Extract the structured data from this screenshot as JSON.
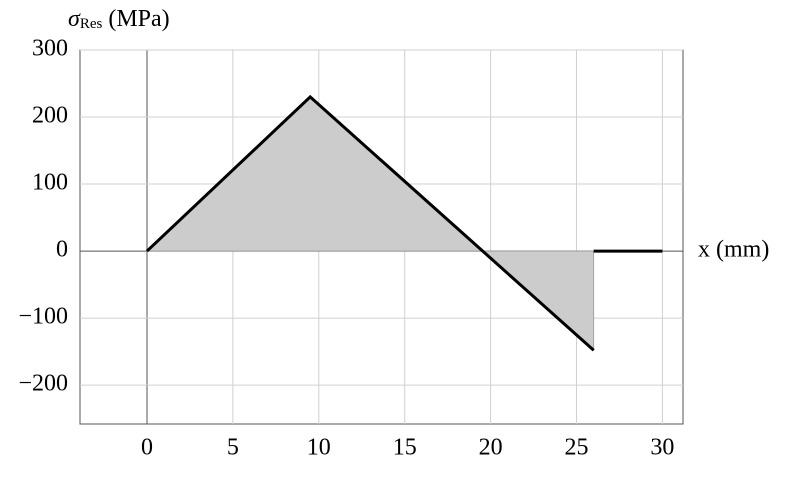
{
  "chart_data": {
    "type": "line",
    "y_label": {
      "symbol": "σ",
      "subscript": "Res",
      "unit": "(MPa)"
    },
    "x_label": "x (mm)",
    "x": [
      0,
      9.5,
      26,
      26,
      26,
      30
    ],
    "series": [
      {
        "color": "#000000",
        "fill": "#cccccc",
        "values": [
          0,
          230,
          -148,
          null,
          0,
          0
        ]
      }
    ],
    "xlim": [
      -3.9,
      31.2
    ],
    "xticks": [
      0,
      5,
      10,
      15,
      20,
      25,
      30
    ],
    "ylim": [
      -258,
      300
    ],
    "yticks": [
      {
        "value": -200,
        "label": "−200"
      },
      {
        "value": -100,
        "label": "−100"
      },
      0,
      100,
      200,
      300
    ],
    "grid": true
  }
}
